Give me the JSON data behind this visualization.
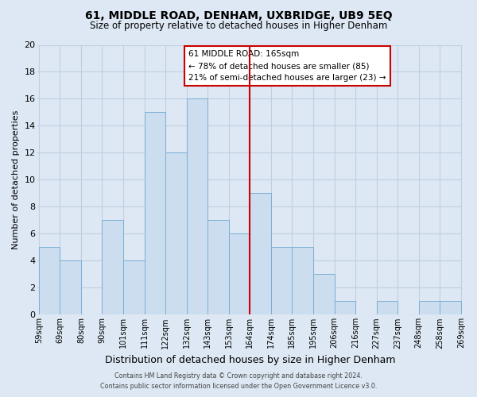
{
  "title": "61, MIDDLE ROAD, DENHAM, UXBRIDGE, UB9 5EQ",
  "subtitle": "Size of property relative to detached houses in Higher Denham",
  "xlabel": "Distribution of detached houses by size in Higher Denham",
  "ylabel": "Number of detached properties",
  "bar_labels": [
    "59sqm",
    "69sqm",
    "80sqm",
    "90sqm",
    "101sqm",
    "111sqm",
    "122sqm",
    "132sqm",
    "143sqm",
    "153sqm",
    "164sqm",
    "174sqm",
    "185sqm",
    "195sqm",
    "206sqm",
    "216sqm",
    "227sqm",
    "237sqm",
    "248sqm",
    "258sqm",
    "269sqm"
  ],
  "bar_values": [
    5,
    4,
    0,
    7,
    4,
    15,
    12,
    16,
    7,
    6,
    9,
    5,
    5,
    3,
    1,
    0,
    1,
    0,
    1,
    1
  ],
  "bar_color": "#ccddf0",
  "bar_edge_color": "#7bafd4",
  "ylim": [
    0,
    20
  ],
  "yticks": [
    0,
    2,
    4,
    6,
    8,
    10,
    12,
    14,
    16,
    18,
    20
  ],
  "ref_line_x": 10,
  "ref_line_color": "#cc0000",
  "legend_title": "61 MIDDLE ROAD: 165sqm",
  "legend_line1": "← 78% of detached houses are smaller (85)",
  "legend_line2": "21% of semi-detached houses are larger (23) →",
  "legend_box_color": "#ffffff",
  "legend_box_edge_color": "#cc0000",
  "footer_line1": "Contains HM Land Registry data © Crown copyright and database right 2024.",
  "footer_line2": "Contains public sector information licensed under the Open Government Licence v3.0.",
  "bg_color": "#dde8f4",
  "plot_bg_color": "#dde8f4",
  "grid_color": "#c0cfe0"
}
